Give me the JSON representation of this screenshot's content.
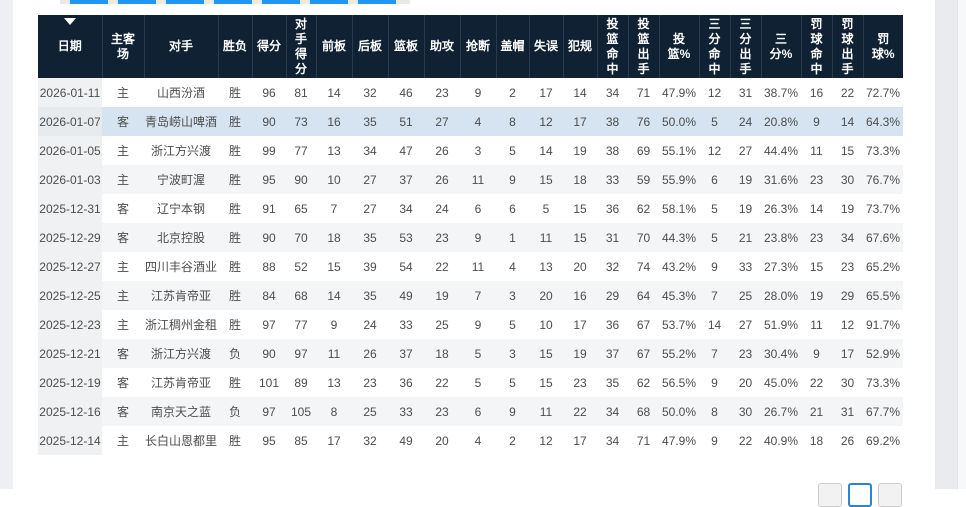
{
  "colors": {
    "header_bg": "#0f2133",
    "header_text": "#ffffff",
    "row_highlight_blue": "#d5e4f0",
    "row_stripe_gray": "#f4f5f6",
    "sorted_column_bg": "#eff1f2",
    "cell_text": "#4d4d4d",
    "accent_blue": "#2196f3",
    "pagination_active_border": "#2e82d6",
    "page_gutter_gray": "#edeff2"
  },
  "top_strip": {
    "dash_count": 7
  },
  "table": {
    "highlight_row_index": 1,
    "columns": [
      {
        "label": "日期",
        "sorted": true
      },
      {
        "label": "主客场"
      },
      {
        "label": "对手"
      },
      {
        "label": "胜负"
      },
      {
        "label": "得分"
      },
      {
        "label": "对手得分"
      },
      {
        "label": "前板"
      },
      {
        "label": "后板"
      },
      {
        "label": "篮板"
      },
      {
        "label": "助攻"
      },
      {
        "label": "抢断"
      },
      {
        "label": "盖帽"
      },
      {
        "label": "失误"
      },
      {
        "label": "犯规"
      },
      {
        "label": "投篮命中"
      },
      {
        "label": "投篮出手"
      },
      {
        "label": "投篮%"
      },
      {
        "label": "三分命中"
      },
      {
        "label": "三分出手"
      },
      {
        "label": "三分%"
      },
      {
        "label": "罚球命中"
      },
      {
        "label": "罚球出手"
      },
      {
        "label": "罚球%"
      }
    ],
    "rows": [
      [
        "2026-01-11",
        "主",
        "山西汾酒",
        "胜",
        "96",
        "81",
        "14",
        "32",
        "46",
        "23",
        "9",
        "2",
        "17",
        "14",
        "34",
        "71",
        "47.9%",
        "12",
        "31",
        "38.7%",
        "16",
        "22",
        "72.7%"
      ],
      [
        "2026-01-07",
        "客",
        "青岛崂山啤酒",
        "胜",
        "90",
        "73",
        "16",
        "35",
        "51",
        "27",
        "4",
        "8",
        "12",
        "17",
        "38",
        "76",
        "50.0%",
        "5",
        "24",
        "20.8%",
        "9",
        "14",
        "64.3%"
      ],
      [
        "2026-01-05",
        "主",
        "浙江方兴渡",
        "胜",
        "99",
        "77",
        "13",
        "34",
        "47",
        "26",
        "3",
        "5",
        "14",
        "19",
        "38",
        "69",
        "55.1%",
        "12",
        "27",
        "44.4%",
        "11",
        "15",
        "73.3%"
      ],
      [
        "2026-01-03",
        "主",
        "宁波町渥",
        "胜",
        "95",
        "90",
        "10",
        "27",
        "37",
        "26",
        "11",
        "9",
        "15",
        "18",
        "33",
        "59",
        "55.9%",
        "6",
        "19",
        "31.6%",
        "23",
        "30",
        "76.7%"
      ],
      [
        "2025-12-31",
        "客",
        "辽宁本钢",
        "胜",
        "91",
        "65",
        "7",
        "27",
        "34",
        "24",
        "6",
        "6",
        "5",
        "15",
        "36",
        "62",
        "58.1%",
        "5",
        "19",
        "26.3%",
        "14",
        "19",
        "73.7%"
      ],
      [
        "2025-12-29",
        "客",
        "北京控股",
        "胜",
        "90",
        "70",
        "18",
        "35",
        "53",
        "23",
        "9",
        "1",
        "11",
        "15",
        "31",
        "70",
        "44.3%",
        "5",
        "21",
        "23.8%",
        "23",
        "34",
        "67.6%"
      ],
      [
        "2025-12-27",
        "主",
        "四川丰谷酒业",
        "胜",
        "88",
        "52",
        "15",
        "39",
        "54",
        "22",
        "11",
        "4",
        "13",
        "20",
        "32",
        "74",
        "43.2%",
        "9",
        "33",
        "27.3%",
        "15",
        "23",
        "65.2%"
      ],
      [
        "2025-12-25",
        "主",
        "江苏肯帝亚",
        "胜",
        "84",
        "68",
        "14",
        "35",
        "49",
        "19",
        "7",
        "3",
        "20",
        "16",
        "29",
        "64",
        "45.3%",
        "7",
        "25",
        "28.0%",
        "19",
        "29",
        "65.5%"
      ],
      [
        "2025-12-23",
        "主",
        "浙江稠州金租",
        "胜",
        "97",
        "77",
        "9",
        "24",
        "33",
        "25",
        "9",
        "5",
        "10",
        "17",
        "36",
        "67",
        "53.7%",
        "14",
        "27",
        "51.9%",
        "11",
        "12",
        "91.7%"
      ],
      [
        "2025-12-21",
        "客",
        "浙江方兴渡",
        "负",
        "90",
        "97",
        "11",
        "26",
        "37",
        "18",
        "5",
        "3",
        "15",
        "19",
        "37",
        "67",
        "55.2%",
        "7",
        "23",
        "30.4%",
        "9",
        "17",
        "52.9%"
      ],
      [
        "2025-12-19",
        "客",
        "江苏肯帝亚",
        "胜",
        "101",
        "89",
        "13",
        "23",
        "36",
        "22",
        "5",
        "5",
        "15",
        "23",
        "35",
        "62",
        "56.5%",
        "9",
        "20",
        "45.0%",
        "22",
        "30",
        "73.3%"
      ],
      [
        "2025-12-16",
        "客",
        "南京天之蓝",
        "负",
        "97",
        "105",
        "8",
        "25",
        "33",
        "23",
        "6",
        "9",
        "11",
        "22",
        "34",
        "68",
        "50.0%",
        "8",
        "30",
        "26.7%",
        "21",
        "31",
        "67.7%"
      ],
      [
        "2025-12-14",
        "主",
        "长白山恩都里",
        "胜",
        "95",
        "85",
        "17",
        "32",
        "49",
        "20",
        "4",
        "2",
        "12",
        "17",
        "34",
        "71",
        "47.9%",
        "9",
        "22",
        "40.9%",
        "18",
        "26",
        "69.2%"
      ]
    ]
  },
  "pagination": {
    "buttons": [
      {
        "name": "page-button-1",
        "active": false
      },
      {
        "name": "page-button-2",
        "active": true
      },
      {
        "name": "page-button-3",
        "active": false
      }
    ]
  }
}
